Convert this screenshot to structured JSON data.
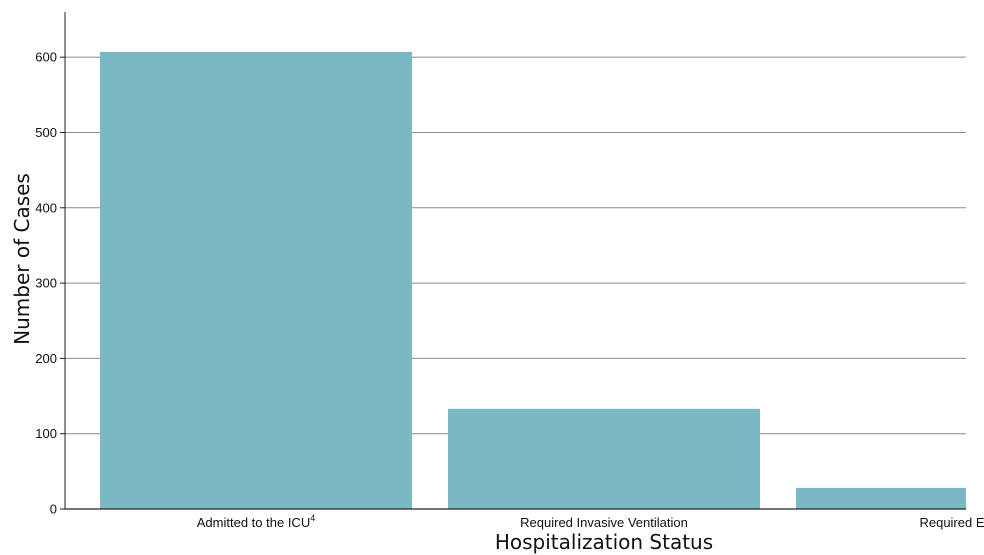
{
  "chart_data": {
    "type": "bar",
    "categories": [
      "Admitted to the ICU",
      "Required Invasive Ventilation",
      "Required E"
    ],
    "category_superscripts": [
      "4",
      "",
      ""
    ],
    "values": [
      607,
      133,
      28
    ],
    "xlabel": "Hospitalization Status",
    "ylabel": "Number of Cases",
    "ylim": [
      0,
      660
    ],
    "yticks": [
      0,
      100,
      200,
      300,
      400,
      500,
      600
    ],
    "grid": true,
    "colors": {
      "bar": "#7ab9c4",
      "grid": "#8c8c8c",
      "axis": "#222222"
    }
  }
}
